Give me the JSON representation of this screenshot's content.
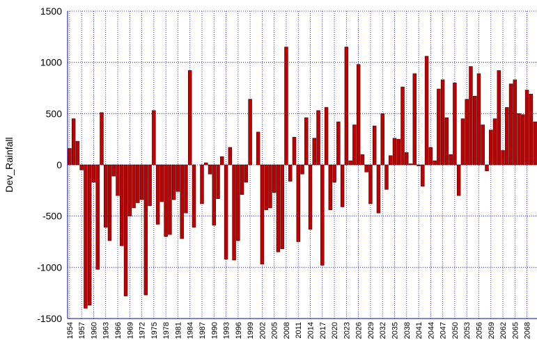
{
  "chart_data": {
    "type": "bar",
    "y_label": "Dev_Rainfall",
    "categories": [
      "1954",
      null,
      null,
      "1957",
      null,
      null,
      "1960",
      null,
      null,
      "1963",
      null,
      null,
      "1966",
      null,
      null,
      "1969",
      null,
      null,
      "1972",
      null,
      null,
      "1975",
      null,
      null,
      "1978",
      null,
      null,
      "1981",
      null,
      null,
      "1984",
      null,
      null,
      "1987",
      null,
      null,
      "1990",
      null,
      null,
      "1993",
      null,
      null,
      "1996",
      null,
      null,
      "1999",
      null,
      null,
      "2002",
      null,
      null,
      "2005",
      null,
      null,
      "2008",
      null,
      null,
      "2011",
      null,
      null,
      "2014",
      null,
      null,
      "2017",
      null,
      null,
      "2020",
      null,
      null,
      "2023",
      null,
      null,
      "2026",
      null,
      null,
      "2029",
      null,
      null,
      "2032",
      null,
      null,
      "2035",
      null,
      null,
      "2038",
      null,
      null,
      "2041",
      null,
      null,
      "2044",
      null,
      null,
      "2047",
      null,
      null,
      "2050",
      null,
      null,
      "2053",
      null,
      null,
      "2056",
      null,
      null,
      "2059",
      null,
      null,
      "2062",
      null,
      null,
      "2065",
      null,
      null,
      "2068",
      null,
      null
    ],
    "values": [
      160,
      450,
      230,
      -50,
      -1400,
      -1370,
      -170,
      -1020,
      510,
      -610,
      -740,
      -110,
      -300,
      -790,
      -1280,
      -500,
      -420,
      -370,
      -340,
      -1270,
      -400,
      530,
      -580,
      -360,
      -700,
      -680,
      -340,
      -260,
      -720,
      -470,
      920,
      -610,
      0,
      -380,
      20,
      -90,
      -590,
      -330,
      80,
      -920,
      170,
      -930,
      -740,
      -290,
      -170,
      640,
      0,
      320,
      -970,
      -440,
      -420,
      -270,
      -850,
      -820,
      1150,
      -160,
      270,
      -750,
      -90,
      460,
      -630,
      260,
      530,
      -980,
      560,
      -440,
      -170,
      420,
      -410,
      1150,
      40,
      390,
      980,
      100,
      -70,
      -380,
      380,
      -470,
      500,
      -240,
      90,
      260,
      250,
      760,
      120,
      10,
      890,
      -10,
      -210,
      1060,
      170,
      40,
      740,
      830,
      460,
      100,
      800,
      -300,
      450,
      640,
      960,
      670,
      890,
      390,
      -60,
      340,
      450,
      920,
      140,
      560,
      790,
      830,
      500,
      490,
      730,
      690,
      420
    ],
    "color": "#c00000",
    "ylim": [
      -1500,
      1500
    ],
    "yticks": [
      -1500,
      -1000,
      -500,
      0,
      500,
      1000,
      1500
    ],
    "grid": true
  }
}
